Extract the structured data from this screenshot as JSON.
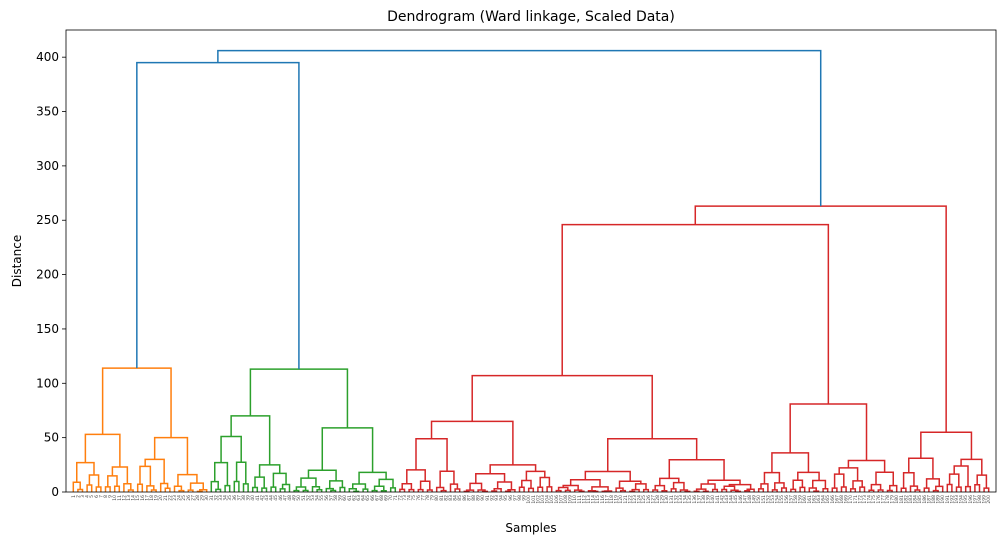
{
  "chart_data": {
    "type": "dendrogram",
    "title": "Dendrogram (Ward linkage, Scaled Data)",
    "xlabel": "Samples",
    "ylabel": "Distance",
    "ylim": [
      0,
      425
    ],
    "yticks": [
      0,
      50,
      100,
      150,
      200,
      250,
      300,
      350,
      400
    ],
    "grid": false,
    "link_color_above_threshold": "#1f77b4",
    "clusters": [
      {
        "color": "#ff7f0e",
        "leaf_count": 30,
        "root_height": 114,
        "subclusters": [
          {
            "height": 53,
            "children_heights": [
              27,
              23
            ]
          },
          {
            "height": 50,
            "children_heights": [
              30,
              16
            ]
          }
        ]
      },
      {
        "color": "#2ca02c",
        "leaf_count": 41,
        "root_height": 113,
        "subclusters": [
          {
            "height": 70,
            "children_heights": [
              51,
              25
            ]
          },
          {
            "height": 59,
            "children_heights": [
              20,
              18
            ]
          }
        ]
      },
      {
        "color": "#d62728",
        "leaf_count": 129,
        "root_height": 263,
        "subclusters": [
          {
            "height": 246,
            "children_heights": [
              107,
              81
            ]
          },
          {
            "height": 107,
            "children_heights": [
              65,
              49
            ]
          },
          {
            "height": 65,
            "children_heights": [
              49,
              25
            ]
          },
          {
            "height": 81,
            "children_heights": [
              36,
              29
            ]
          },
          {
            "height": 55,
            "children_heights": [
              31,
              30
            ]
          }
        ]
      }
    ],
    "top_links": [
      {
        "height": 395,
        "joins": [
          "#ff7f0e cluster",
          "#2ca02c cluster"
        ]
      },
      {
        "height": 406,
        "joins": [
          "#ff7f0e + #2ca02c",
          "#d62728 cluster"
        ]
      }
    ]
  }
}
